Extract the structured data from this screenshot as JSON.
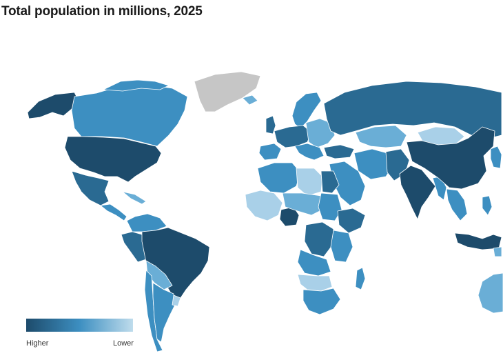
{
  "title": "Total population in millions, 2025",
  "legend": {
    "high_label": "Higher",
    "low_label": "Lower",
    "high_color": "#1d4b6b",
    "low_color": "#bfdcec"
  },
  "colors": {
    "very_high": "#1d4b6b",
    "high": "#2a6a92",
    "mid": "#3d8fc1",
    "low": "#6aaed6",
    "very_low": "#a9d0e8",
    "no_data": "#c6c6c6",
    "background": "#ffffff"
  }
}
